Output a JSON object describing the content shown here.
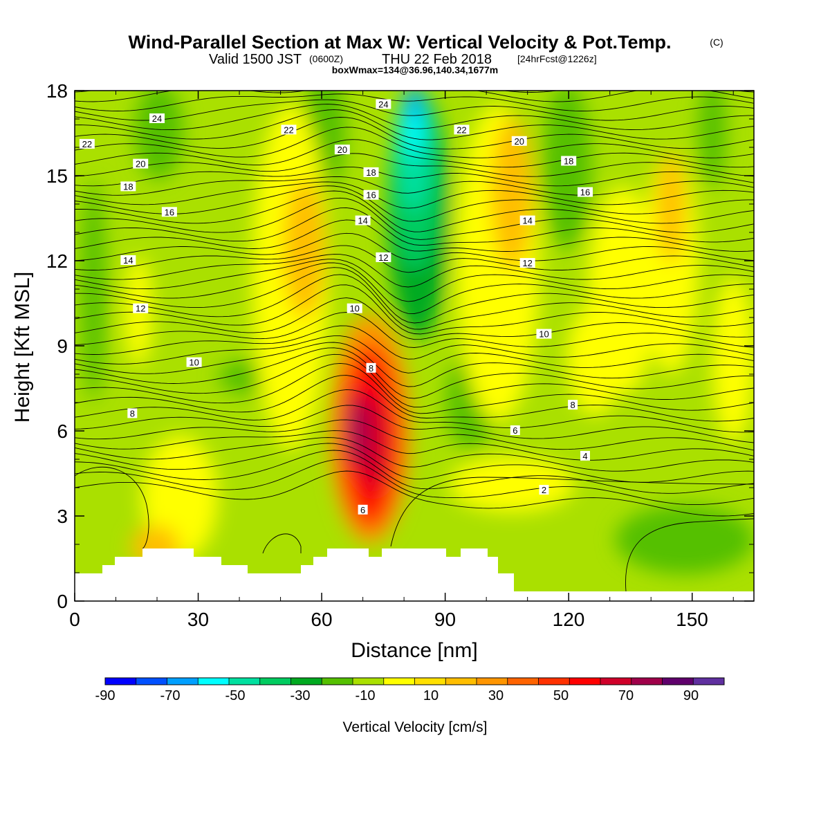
{
  "chart_data": {
    "type": "heatmap",
    "title": "Wind-Parallel Section at Max W: Vertical Velocity & Pot.Temp.",
    "title_mark": "(C)",
    "subtitle_main": "Valid 1500 JST",
    "subtitle_z": "(0600Z)",
    "subtitle_date": "THU 22 Feb 2018",
    "subtitle_fcst": "[24hrFcst@1226z]",
    "box_info": "boxWmax=134@36.96,140.34,1677m",
    "xlabel": "Distance [nm]",
    "ylabel": "Height [Kft MSL]",
    "xlim": [
      0,
      165
    ],
    "ylim": [
      0,
      18
    ],
    "xticks": [
      0,
      30,
      60,
      90,
      120,
      150
    ],
    "yticks": [
      0,
      3,
      6,
      9,
      12,
      15,
      18
    ],
    "colorbar": {
      "label": "Vertical Velocity [cm/s]",
      "tick_values": [
        -90,
        -70,
        -50,
        -30,
        -10,
        10,
        30,
        50,
        70,
        90
      ],
      "bins": [
        -100,
        -90,
        -80,
        -70,
        -60,
        -50,
        -40,
        -30,
        -20,
        -10,
        0,
        10,
        20,
        30,
        40,
        50,
        60,
        70,
        80,
        90,
        100
      ],
      "colors": [
        "#0000ff",
        "#0050ff",
        "#00a0ff",
        "#00ffff",
        "#00e0a0",
        "#00cc60",
        "#00aa20",
        "#55c000",
        "#aae000",
        "#ffff00",
        "#ffe000",
        "#ffbe00",
        "#ff9600",
        "#ff6400",
        "#ff3200",
        "#ff0000",
        "#d0002a",
        "#a0004a",
        "#60006c",
        "#6030a0"
      ]
    },
    "contour_labels": [
      {
        "text": "24",
        "x": 20,
        "y": 17.0
      },
      {
        "text": "22",
        "x": 3,
        "y": 16.1
      },
      {
        "text": "20",
        "x": 16,
        "y": 15.4
      },
      {
        "text": "18",
        "x": 13,
        "y": 14.6
      },
      {
        "text": "16",
        "x": 23,
        "y": 13.7
      },
      {
        "text": "14",
        "x": 13,
        "y": 12.0
      },
      {
        "text": "12",
        "x": 16,
        "y": 10.3
      },
      {
        "text": "10",
        "x": 29,
        "y": 8.4
      },
      {
        "text": "8",
        "x": 14,
        "y": 6.6
      },
      {
        "text": "22",
        "x": 52,
        "y": 16.6
      },
      {
        "text": "20",
        "x": 65,
        "y": 15.9
      },
      {
        "text": "24",
        "x": 75,
        "y": 17.5
      },
      {
        "text": "18",
        "x": 72,
        "y": 15.1
      },
      {
        "text": "16",
        "x": 72,
        "y": 14.3
      },
      {
        "text": "14",
        "x": 70,
        "y": 13.4
      },
      {
        "text": "12",
        "x": 75,
        "y": 12.1
      },
      {
        "text": "10",
        "x": 68,
        "y": 10.3
      },
      {
        "text": "8",
        "x": 72,
        "y": 8.2
      },
      {
        "text": "6",
        "x": 70,
        "y": 3.2
      },
      {
        "text": "22",
        "x": 94,
        "y": 16.6
      },
      {
        "text": "20",
        "x": 108,
        "y": 16.2
      },
      {
        "text": "18",
        "x": 120,
        "y": 15.5
      },
      {
        "text": "16",
        "x": 124,
        "y": 14.4
      },
      {
        "text": "14",
        "x": 110,
        "y": 13.4
      },
      {
        "text": "12",
        "x": 110,
        "y": 11.9
      },
      {
        "text": "10",
        "x": 114,
        "y": 9.4
      },
      {
        "text": "8",
        "x": 121,
        "y": 6.9
      },
      {
        "text": "6",
        "x": 107,
        "y": 6.0
      },
      {
        "text": "4",
        "x": 124,
        "y": 5.1
      },
      {
        "text": "2",
        "x": 114,
        "y": 3.9
      }
    ]
  }
}
